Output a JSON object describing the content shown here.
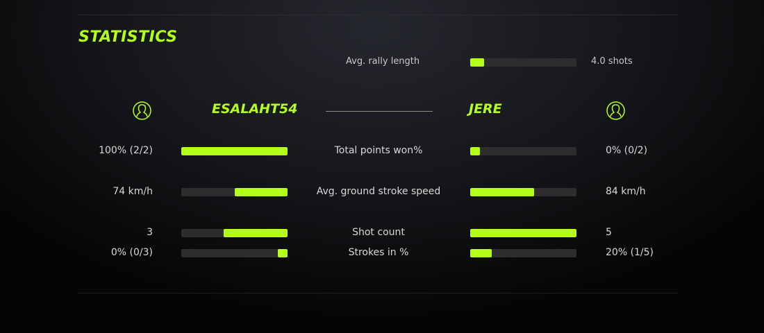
{
  "title": "STATISTICS",
  "accent": "#b4ff1a",
  "rally": {
    "label": "Avg. rally length",
    "value": "4.0 shots",
    "fill": 0.13
  },
  "players": {
    "left": {
      "name": "ESALAHT54",
      "icon": "user-icon"
    },
    "right": {
      "name": "JERE",
      "icon": "user-icon"
    }
  },
  "stats": [
    {
      "label": "Total points won%",
      "left": "100% (2/2)",
      "right": "0% (0/2)",
      "left_fill": 1.0,
      "right_fill": 0.09
    },
    {
      "label": "Avg. ground stroke speed",
      "left": "74 km/h",
      "right": "84 km/h",
      "left_fill": 0.5,
      "right_fill": 0.6
    },
    {
      "label": "Shot count",
      "left": "3",
      "right": "5",
      "left_fill": 0.6,
      "right_fill": 1.0
    },
    {
      "label": "Strokes in %",
      "left": "0% (0/3)",
      "right": "20% (1/5)",
      "left_fill": 0.09,
      "right_fill": 0.2
    }
  ]
}
